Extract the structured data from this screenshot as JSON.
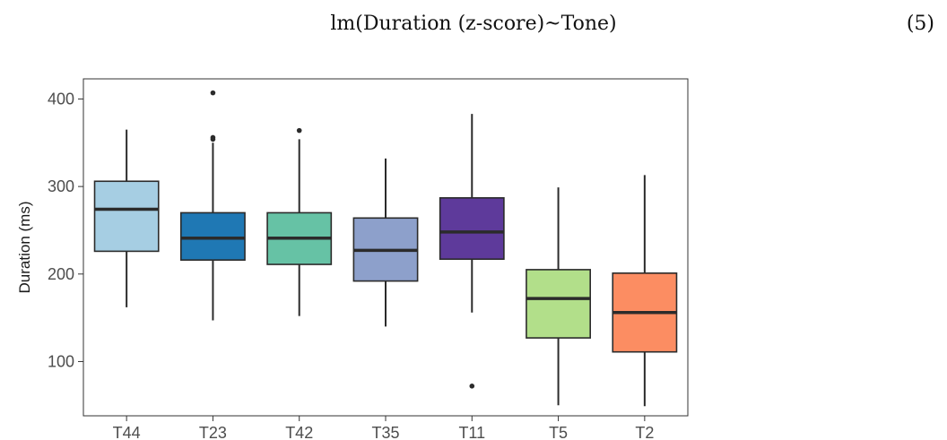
{
  "formula": {
    "text": "lm(Duration (z-score)~Tone)",
    "number": "(5)"
  },
  "colors": {
    "T44": "#a6cee3",
    "T23": "#1f78b4",
    "T42": "#66c2a5",
    "T35": "#8da0cb",
    "T11": "#5e3a9b",
    "T5": "#b2df8a",
    "T2": "#fc8d62"
  },
  "chart_data": {
    "type": "box",
    "title": "",
    "xlabel": "",
    "ylabel": "Duration (ms)",
    "ylim": [
      38,
      423
    ],
    "yticks": [
      100,
      200,
      300,
      400
    ],
    "grid": false,
    "categories": [
      "T44",
      "T23",
      "T42",
      "T35",
      "T11",
      "T5",
      "T2"
    ],
    "boxes": [
      {
        "name": "T44",
        "min": 162,
        "q1": 226,
        "median": 274,
        "q3": 306,
        "max": 365,
        "outliers": []
      },
      {
        "name": "T23",
        "min": 147,
        "q1": 216,
        "median": 241,
        "q3": 270,
        "max": 350,
        "outliers": [
          354,
          356,
          407
        ]
      },
      {
        "name": "T42",
        "min": 152,
        "q1": 211,
        "median": 241,
        "q3": 270,
        "max": 354,
        "outliers": [
          364
        ]
      },
      {
        "name": "T35",
        "min": 140,
        "q1": 192,
        "median": 227,
        "q3": 264,
        "max": 332,
        "outliers": []
      },
      {
        "name": "T11",
        "min": 156,
        "q1": 217,
        "median": 248,
        "q3": 287,
        "max": 383,
        "outliers": [
          72
        ]
      },
      {
        "name": "T5",
        "min": 50,
        "q1": 127,
        "median": 172,
        "q3": 205,
        "max": 299,
        "outliers": []
      },
      {
        "name": "T2",
        "min": 49,
        "q1": 111,
        "median": 156,
        "q3": 201,
        "max": 313,
        "outliers": []
      }
    ]
  }
}
